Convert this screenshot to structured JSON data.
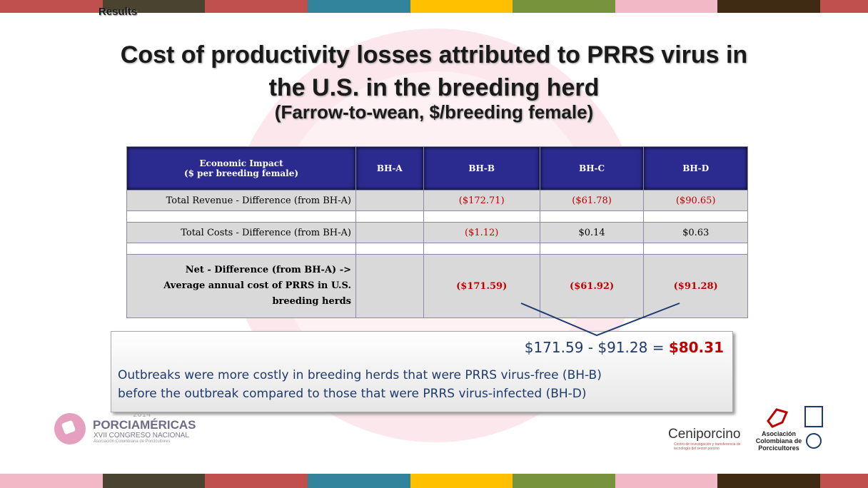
{
  "header": {
    "section": "Results",
    "title": [
      "Cost of productivity losses attributed to PRRS virus in",
      "the U.S. in the breeding herd"
    ],
    "subtitle": "(Farrow-to-wean, $/breeding female)"
  },
  "table": {
    "header": [
      [
        "Economic Impact",
        "($ per breeding female)"
      ],
      "BH-A",
      "BH-B",
      "BH-C",
      "BH-D"
    ],
    "rows": [
      {
        "label": "Total Revenue - Difference (from BH-A)",
        "values": [
          "($172.71)",
          "($61.78)",
          "($90.65)"
        ]
      },
      {
        "label": "Total Costs - Difference (from BH-A)",
        "values": [
          "($1.12)",
          "$0.14",
          "$0.63"
        ]
      },
      {
        "label": [
          "Net - Difference (from BH-A) ->",
          "Average annual  cost of PRRS in U.S.",
          "breeding herds"
        ],
        "values": [
          "($171.59)",
          "($61.92)",
          "($91.28)"
        ]
      }
    ]
  },
  "callout": {
    "equation": "$171.59 - $91.28 =",
    "result": "$80.31",
    "text": [
      "Outbreaks were more costly in breeding herds that were PRRS virus-free (BH-B)",
      "before the outbreak compared to those that were PRRS virus-infected (BH-D)"
    ]
  },
  "logos": {
    "porciamericas": {
      "year": "2014",
      "name": "PORCIAMÉRICAS",
      "event": "XVII CONGRESO NACIONAL",
      "org": "Asociación Colombiana de Porcicultores"
    },
    "ceniporcino": {
      "name": "Ceniporcino",
      "tagline": "Centro de investigación y transferencia de tecnología del sector porcino"
    },
    "asociacion": "Asociación Colombiana de Porcicultores"
  }
}
